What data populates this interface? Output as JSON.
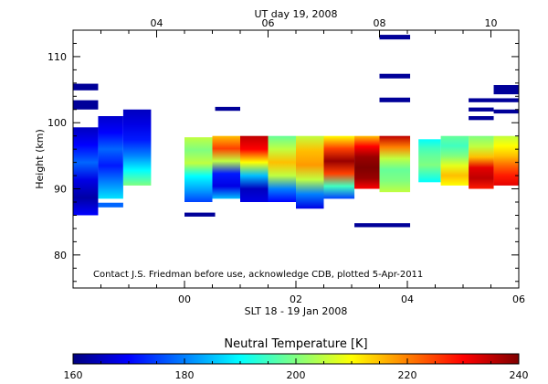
{
  "chart_data": {
    "type": "heatmap",
    "title_top": "UT day 19, 2008",
    "xlabel": "SLT 18 - 19 Jan 2008",
    "ylabel": "Height (km)",
    "x_range": [
      -2.0,
      6.0
    ],
    "y_range": [
      75,
      114
    ],
    "x_ticks": [
      {
        "v": 0,
        "label": "00"
      },
      {
        "v": 2,
        "label": "02"
      },
      {
        "v": 4,
        "label": "04"
      },
      {
        "v": 6,
        "label": "06"
      }
    ],
    "x_top_ticks": [
      {
        "v": -0.5,
        "label": "04"
      },
      {
        "v": 1.5,
        "label": "06"
      },
      {
        "v": 3.5,
        "label": "08"
      },
      {
        "v": 5.5,
        "label": "10"
      }
    ],
    "y_ticks": [
      {
        "v": 80,
        "label": "80"
      },
      {
        "v": 90,
        "label": "90"
      },
      {
        "v": 100,
        "label": "100"
      },
      {
        "v": 110,
        "label": "110"
      }
    ],
    "annotation": "Contact J.S. Friedman before use, acknowledge CDB, plotted 5-Apr-2011",
    "colorbar": {
      "title": "Neutral Temperature [K]",
      "min": 160,
      "max": 240,
      "ticks": [
        160,
        180,
        200,
        220,
        240
      ]
    },
    "columns": [
      {
        "x0": -2.0,
        "x1": -1.55,
        "y0": 86.0,
        "y1": 99.3,
        "t": [
          170,
          163,
          168,
          178,
          170,
          165
        ]
      },
      {
        "x0": -1.55,
        "x1": -1.1,
        "y0": 88.5,
        "y1": 101.0,
        "t": [
          188,
          180,
          172,
          178,
          170,
          166
        ]
      },
      {
        "x0": -1.1,
        "x1": -0.6,
        "y0": 90.5,
        "y1": 102.0,
        "t": [
          200,
          190,
          180,
          172,
          168,
          165
        ]
      },
      {
        "x0": 0.0,
        "x1": 0.5,
        "y0": 88.0,
        "y1": 97.8,
        "t": [
          175,
          183,
          190,
          205,
          200,
          205
        ]
      },
      {
        "x0": 0.5,
        "x1": 1.0,
        "y0": 88.5,
        "y1": 98.0,
        "t": [
          185,
          168,
          172,
          205,
          225,
          215
        ]
      },
      {
        "x0": 1.0,
        "x1": 1.5,
        "y0": 88.0,
        "y1": 98.0,
        "t": [
          168,
          165,
          185,
          210,
          230,
          235
        ]
      },
      {
        "x0": 1.5,
        "x1": 2.0,
        "y0": 88.0,
        "y1": 98.0,
        "t": [
          170,
          180,
          205,
          215,
          205,
          198
        ]
      },
      {
        "x0": 2.0,
        "x1": 2.5,
        "y0": 87.0,
        "y1": 98.0,
        "t": [
          168,
          180,
          205,
          218,
          215,
          205
        ]
      },
      {
        "x0": 2.5,
        "x1": 3.05,
        "y0": 88.5,
        "y1": 98.0,
        "t": [
          175,
          195,
          225,
          238,
          225,
          210
        ]
      },
      {
        "x0": 3.05,
        "x1": 3.5,
        "y0": 90.0,
        "y1": 98.0,
        "t": [
          230,
          238,
          240,
          238,
          230,
          215
        ]
      },
      {
        "x0": 3.5,
        "x1": 4.05,
        "y0": 89.5,
        "y1": 98.0,
        "t": [
          205,
          200,
          198,
          205,
          220,
          235
        ]
      },
      {
        "x0": 4.2,
        "x1": 4.6,
        "y0": 91.0,
        "y1": 97.5,
        "t": [
          190,
          195,
          200,
          198,
          195,
          190
        ]
      },
      {
        "x0": 4.6,
        "x1": 5.1,
        "y0": 90.5,
        "y1": 98.0,
        "t": [
          210,
          215,
          208,
          200,
          195,
          198
        ]
      },
      {
        "x0": 5.1,
        "x1": 5.55,
        "y0": 90.0,
        "y1": 98.0,
        "t": [
          228,
          235,
          232,
          215,
          205,
          200
        ]
      },
      {
        "x0": 5.55,
        "x1": 6.0,
        "y0": 90.5,
        "y1": 98.0,
        "t": [
          232,
          228,
          222,
          215,
          210,
          205
        ]
      }
    ],
    "segments": [
      {
        "x0": -2.0,
        "x1": -1.55,
        "y0": 102.0,
        "y1": 103.4,
        "t": 162
      },
      {
        "x0": -2.0,
        "x1": -1.55,
        "y0": 104.9,
        "y1": 105.9,
        "t": 162
      },
      {
        "x0": -1.55,
        "x1": -1.1,
        "y0": 87.2,
        "y1": 87.9,
        "t": 178
      },
      {
        "x0": 0.0,
        "x1": 0.55,
        "y0": 85.8,
        "y1": 86.4,
        "t": 162
      },
      {
        "x0": 0.55,
        "x1": 1.0,
        "y0": 101.8,
        "y1": 102.4,
        "t": 162
      },
      {
        "x0": 3.05,
        "x1": 4.05,
        "y0": 84.2,
        "y1": 84.8,
        "t": 162
      },
      {
        "x0": 3.5,
        "x1": 4.05,
        "y0": 103.1,
        "y1": 103.8,
        "t": 162
      },
      {
        "x0": 3.5,
        "x1": 4.05,
        "y0": 106.7,
        "y1": 107.4,
        "t": 162
      },
      {
        "x0": 3.5,
        "x1": 4.05,
        "y0": 112.6,
        "y1": 113.3,
        "t": 162
      },
      {
        "x0": 5.1,
        "x1": 5.55,
        "y0": 100.4,
        "y1": 101.0,
        "t": 162
      },
      {
        "x0": 5.1,
        "x1": 5.55,
        "y0": 101.7,
        "y1": 102.3,
        "t": 162
      },
      {
        "x0": 5.1,
        "x1": 6.0,
        "y0": 103.1,
        "y1": 103.7,
        "t": 162
      },
      {
        "x0": 5.55,
        "x1": 6.0,
        "y0": 101.4,
        "y1": 102.0,
        "t": 162
      },
      {
        "x0": 5.55,
        "x1": 6.0,
        "y0": 104.3,
        "y1": 105.7,
        "t": 162
      }
    ]
  }
}
